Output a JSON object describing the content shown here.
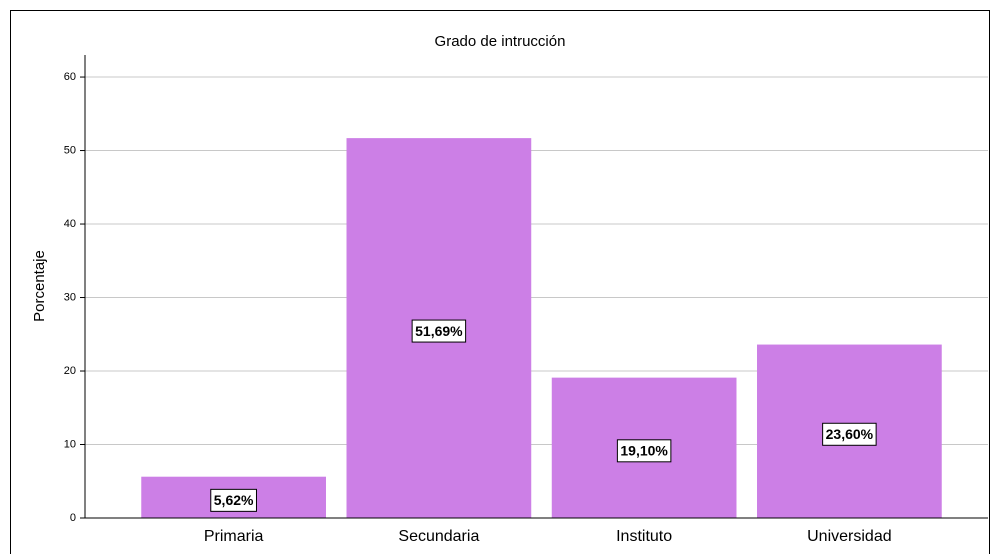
{
  "chart_data": {
    "type": "bar",
    "title": "Grado de intrucción",
    "y_label": "Porcentaje",
    "categories": [
      "Primaria",
      "Secundaria",
      "Instituto",
      "Universidad"
    ],
    "values": [
      5.62,
      51.69,
      19.1,
      23.6
    ],
    "value_labels": [
      "5,62%",
      "51,69%",
      "19,10%",
      "23,60%"
    ],
    "color": "#cc7fe6",
    "ylim": [
      0,
      63
    ],
    "yticks": [
      0,
      10,
      20,
      30,
      40,
      50,
      60
    ],
    "grid": true
  }
}
